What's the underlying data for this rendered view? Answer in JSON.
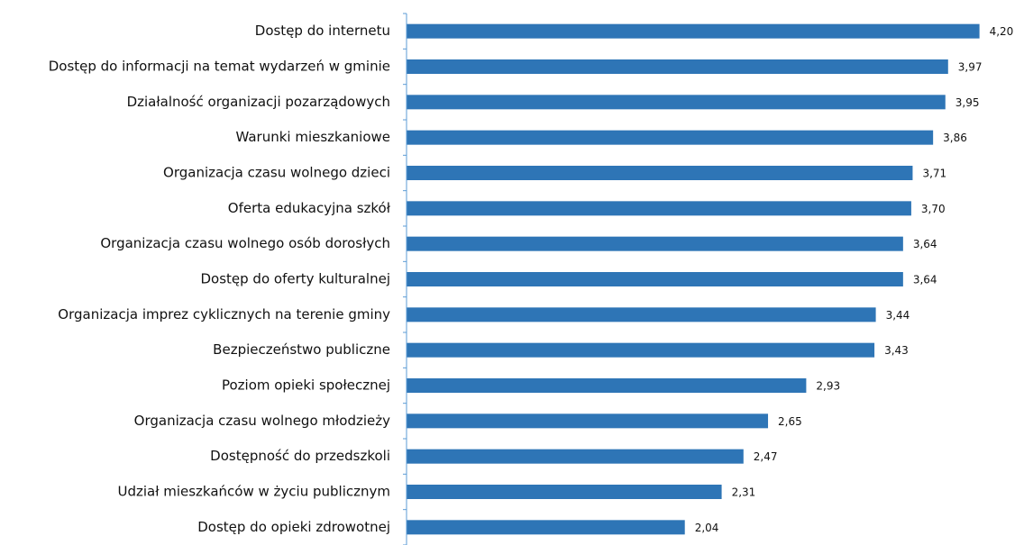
{
  "chart_data": {
    "type": "hbar",
    "categories": [
      "Dostęp do internetu",
      "Dostęp do informacji na temat wydarzeń w gminie",
      "Działalność organizacji pozarządowych",
      "Warunki mieszkaniowe",
      "Organizacja czasu wolnego dzieci",
      "Oferta edukacyjna szkół",
      "Organizacja czasu wolnego osób dorosłych",
      "Dostęp do oferty kulturalnej",
      "Organizacja imprez cyklicznych na terenie gminy",
      "Bezpieczeństwo publiczne",
      "Poziom opieki społecznej",
      "Organizacja czasu wolnego młodzieży",
      "Dostępność do przedszkoli",
      "Udział mieszkańców w życiu publicznym",
      "Dostęp do opieki zdrowotnej"
    ],
    "values": [
      4.2,
      3.97,
      3.95,
      3.86,
      3.71,
      3.7,
      3.64,
      3.64,
      3.44,
      3.43,
      2.93,
      2.65,
      2.47,
      2.31,
      2.04
    ],
    "value_labels": [
      "4,20",
      "3,97",
      "3,95",
      "3,86",
      "3,71",
      "3,70",
      "3,64",
      "3,64",
      "3,44",
      "3,43",
      "2,93",
      "2,65",
      "2,47",
      "2,31",
      "2,04"
    ],
    "color": "#2e75b6",
    "xlim": [
      0,
      4.5
    ]
  }
}
